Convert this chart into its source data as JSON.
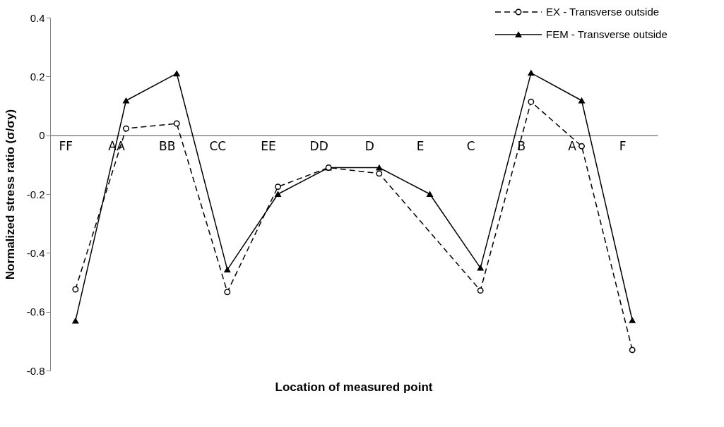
{
  "chart_data": {
    "type": "line",
    "xlabel": "Location of measured point",
    "ylabel": "Normalized stress ratio (σ/σy)",
    "categories": [
      "FF",
      "AA",
      "BB",
      "CC",
      "EE",
      "DD",
      "D",
      "E",
      "C",
      "B",
      "A",
      "F"
    ],
    "series": [
      {
        "name": "EX - Transverse outside",
        "color": "#000000",
        "marker": "circle",
        "line_style": "dashed",
        "values": [
          -0.524,
          0.023,
          0.04,
          -0.533,
          -0.175,
          -0.11,
          -0.13,
          null,
          -0.528,
          0.114,
          -0.037,
          -0.73
        ]
      },
      {
        "name": "FEM - Transverse outside",
        "color": "#000000",
        "marker": "triangle",
        "line_style": "solid",
        "values": [
          -0.631,
          0.118,
          0.21,
          -0.457,
          -0.2,
          -0.11,
          -0.11,
          -0.2,
          -0.451,
          0.212,
          0.118,
          -0.629
        ]
      }
    ],
    "ylim": [
      -0.8,
      0.4
    ],
    "yticks": [
      -0.8,
      -0.6,
      -0.4,
      -0.2,
      0,
      0.2,
      0.4
    ],
    "grid": false,
    "legend": "top right"
  }
}
